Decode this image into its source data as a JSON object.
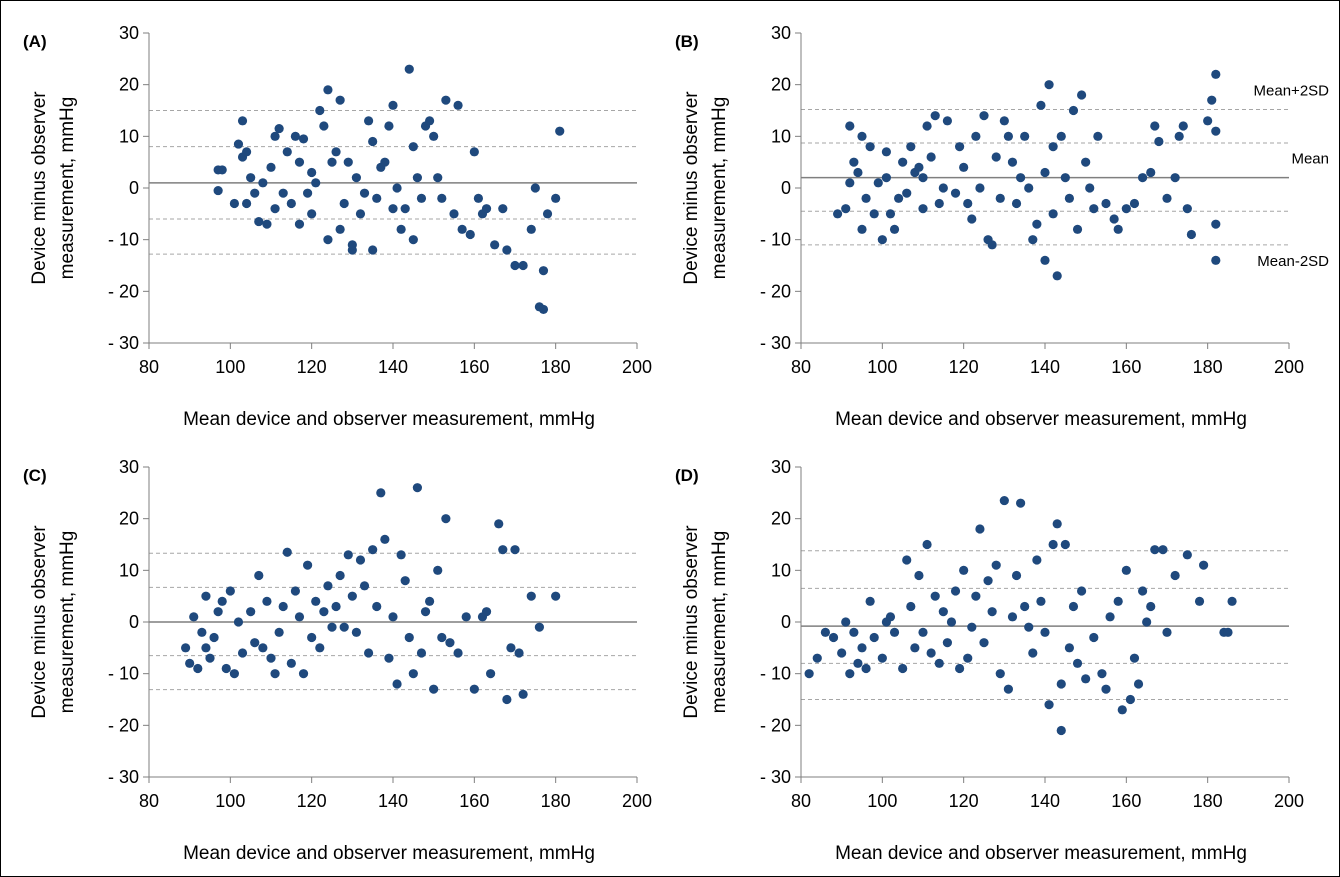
{
  "chart_data": [
    {
      "type": "scatter",
      "panel": "(A)",
      "ylabel": [
        "Device minus observer",
        "measurement, mmHg"
      ],
      "xlabel": "Mean device and observer measurement, mmHg",
      "color": "#1f497d",
      "xlim": [
        80,
        200
      ],
      "xticks": [
        80,
        100,
        120,
        140,
        160,
        180,
        200
      ],
      "ylim": [
        -30,
        30
      ],
      "yticks": [
        {
          "value": -30,
          "label": "- 30"
        },
        {
          "value": -20,
          "label": "- 20"
        },
        {
          "value": -10,
          "label": "- 10"
        },
        0,
        10,
        20,
        30
      ],
      "lines": [
        {
          "value": 15,
          "style": "dashed"
        },
        {
          "value": 8,
          "style": "dashed"
        },
        {
          "value": 1,
          "style": "solid"
        },
        {
          "value": -6,
          "style": "dashed"
        },
        {
          "value": -12.8,
          "style": "dashed"
        }
      ],
      "x": [
        97,
        97,
        98,
        101,
        102,
        103,
        103,
        104,
        104,
        105,
        106,
        107,
        108,
        109,
        110,
        111,
        111,
        112,
        113,
        114,
        115,
        116,
        117,
        117,
        118,
        119,
        120,
        120,
        121,
        122,
        123,
        124,
        124,
        125,
        126,
        127,
        127,
        128,
        129,
        130,
        130,
        131,
        132,
        133,
        134,
        135,
        135,
        136,
        137,
        138,
        139,
        140,
        140,
        141,
        142,
        143,
        144,
        145,
        145,
        146,
        147,
        148,
        149,
        150,
        151,
        152,
        153,
        155,
        156,
        157,
        159,
        160,
        161,
        162,
        163,
        165,
        167,
        168,
        170,
        172,
        174,
        175,
        176,
        177,
        177,
        178,
        180,
        181
      ],
      "values": [
        3.5,
        -0.5,
        3.5,
        -3,
        8.5,
        13,
        6,
        7,
        -3,
        2,
        -1,
        -6.5,
        1,
        -7,
        4,
        -4,
        10,
        11.5,
        -1,
        7,
        -3,
        10,
        -7,
        5,
        9.5,
        -1,
        3,
        -5,
        1,
        15,
        12,
        19,
        -10,
        5,
        7,
        17,
        -8,
        -3,
        5,
        -12,
        -11,
        2,
        -5,
        -1,
        13,
        9,
        -12,
        -2,
        4,
        5,
        12,
        16,
        -4,
        0,
        -8,
        -4,
        23,
        8,
        -10,
        2,
        -2,
        12,
        13,
        10,
        2,
        -2,
        17,
        -5,
        16,
        -8,
        -9,
        7,
        -2,
        -5,
        -4,
        -11,
        -4,
        -12,
        -15,
        -15,
        -8,
        0,
        -23,
        -23.5,
        -16,
        -5,
        -2,
        11
      ]
    },
    {
      "type": "scatter",
      "panel": "(B)",
      "ylabel": [
        "Device minus observer",
        "measurement, mmHg"
      ],
      "xlabel": "Mean device and observer measurement, mmHg",
      "color": "#1f497d",
      "xlim": [
        80,
        200
      ],
      "xticks": [
        80,
        100,
        120,
        140,
        160,
        180,
        200
      ],
      "ylim": [
        -30,
        30
      ],
      "yticks": [
        {
          "value": -30,
          "label": "- 30"
        },
        {
          "value": -20,
          "label": "- 20"
        },
        {
          "value": -10,
          "label": "- 10"
        },
        0,
        10,
        20,
        30
      ],
      "lines": [
        {
          "value": 15.2,
          "style": "dashed",
          "label": "Mean+2SD"
        },
        {
          "value": 8.7,
          "style": "dashed"
        },
        {
          "value": 2,
          "style": "solid",
          "label": "Mean"
        },
        {
          "value": -4.5,
          "style": "dashed"
        },
        {
          "value": -11,
          "style": "dashed",
          "label": "Mean-2SD"
        }
      ],
      "x": [
        89,
        91,
        92,
        92,
        93,
        94,
        95,
        95,
        96,
        97,
        98,
        99,
        100,
        101,
        101,
        102,
        103,
        104,
        105,
        106,
        107,
        108,
        109,
        110,
        110,
        111,
        112,
        113,
        114,
        115,
        116,
        118,
        119,
        120,
        121,
        122,
        123,
        124,
        125,
        126,
        127,
        128,
        129,
        130,
        131,
        132,
        133,
        134,
        135,
        136,
        137,
        138,
        139,
        140,
        140,
        141,
        142,
        142,
        143,
        144,
        145,
        146,
        147,
        148,
        149,
        150,
        151,
        152,
        153,
        155,
        157,
        158,
        160,
        162,
        164,
        166,
        167,
        168,
        170,
        172,
        173,
        174,
        175,
        176,
        180,
        181,
        182,
        182,
        182,
        182
      ],
      "values": [
        -5,
        -4,
        12,
        1,
        5,
        3,
        -8,
        10,
        -2,
        8,
        -5,
        1,
        -10,
        7,
        2,
        -5,
        -8,
        -2,
        5,
        -1,
        8,
        3,
        4,
        2,
        -4,
        12,
        6,
        14,
        -3,
        0,
        13,
        -1,
        8,
        4,
        -3,
        -6,
        10,
        0,
        14,
        -10,
        -11,
        6,
        -2,
        13,
        10,
        5,
        -3,
        2,
        10,
        0,
        -10,
        -7,
        16,
        -14,
        3,
        20,
        8,
        -5,
        -17,
        10,
        2,
        -2,
        15,
        -8,
        18,
        5,
        0,
        -4,
        10,
        -3,
        -6,
        -8,
        -4,
        -3,
        2,
        3,
        12,
        9,
        -2,
        2,
        10,
        12,
        -4,
        -9,
        13,
        17,
        11,
        22,
        -7,
        -14
      ]
    },
    {
      "type": "scatter",
      "panel": "(C)",
      "ylabel": [
        "Device minus observer",
        "measurement, mmHg"
      ],
      "xlabel": "Mean device and observer measurement, mmHg",
      "color": "#1f497d",
      "xlim": [
        80,
        200
      ],
      "xticks": [
        80,
        100,
        120,
        140,
        160,
        180,
        200
      ],
      "ylim": [
        -30,
        30
      ],
      "yticks": [
        {
          "value": -30,
          "label": "- 30"
        },
        {
          "value": -20,
          "label": "- 20"
        },
        {
          "value": -10,
          "label": "- 10"
        },
        0,
        10,
        20,
        30
      ],
      "lines": [
        {
          "value": 13.3,
          "style": "dashed"
        },
        {
          "value": 6.7,
          "style": "dashed"
        },
        {
          "value": 0,
          "style": "solid"
        },
        {
          "value": -6.5,
          "style": "dashed"
        },
        {
          "value": -13.1,
          "style": "dashed"
        }
      ],
      "x": [
        89,
        90,
        91,
        92,
        93,
        94,
        94,
        95,
        96,
        97,
        98,
        99,
        100,
        101,
        102,
        103,
        105,
        106,
        107,
        108,
        109,
        110,
        111,
        112,
        113,
        114,
        115,
        116,
        117,
        118,
        119,
        120,
        121,
        122,
        123,
        124,
        125,
        126,
        127,
        128,
        129,
        130,
        131,
        132,
        133,
        134,
        135,
        136,
        137,
        138,
        139,
        140,
        141,
        142,
        143,
        144,
        145,
        146,
        147,
        148,
        149,
        150,
        151,
        152,
        153,
        154,
        156,
        158,
        160,
        162,
        163,
        164,
        166,
        167,
        168,
        169,
        170,
        171,
        172,
        174,
        176,
        180
      ],
      "values": [
        -5,
        -8,
        1,
        -9,
        -2,
        -5,
        5,
        -7,
        -3,
        2,
        4,
        -9,
        6,
        -10,
        0,
        -6,
        2,
        -4,
        9,
        -5,
        4,
        -7,
        -10,
        -2,
        3,
        13.5,
        -8,
        6,
        1,
        -10,
        11,
        -3,
        4,
        -5,
        2,
        7,
        -1,
        3,
        9,
        -1,
        13,
        5,
        -2,
        12,
        7,
        -6,
        14,
        3,
        25,
        16,
        -7,
        1,
        -12,
        13,
        8,
        -3,
        -10,
        26,
        -6,
        2,
        4,
        -13,
        10,
        -3,
        20,
        -4,
        -6,
        1,
        -13,
        1,
        2,
        -10,
        19,
        14,
        -15,
        -5,
        14,
        -6,
        -14,
        5,
        -1,
        5
      ]
    },
    {
      "type": "scatter",
      "panel": "(D)",
      "ylabel": [
        "Device minus observer",
        "measurement, mmHg"
      ],
      "xlabel": "Mean device and observer measurement, mmHg",
      "color": "#1f497d",
      "xlim": [
        80,
        200
      ],
      "xticks": [
        80,
        100,
        120,
        140,
        160,
        180,
        200
      ],
      "ylim": [
        -30,
        30
      ],
      "yticks": [
        {
          "value": -30,
          "label": "- 30"
        },
        {
          "value": -20,
          "label": "- 20"
        },
        {
          "value": -10,
          "label": "- 10"
        },
        0,
        10,
        20,
        30
      ],
      "lines": [
        {
          "value": 13.8,
          "style": "dashed"
        },
        {
          "value": 6.5,
          "style": "dashed"
        },
        {
          "value": -0.8,
          "style": "solid"
        },
        {
          "value": -8,
          "style": "dashed"
        },
        {
          "value": -15,
          "style": "dashed"
        }
      ],
      "x": [
        82,
        84,
        86,
        88,
        90,
        91,
        92,
        93,
        94,
        95,
        96,
        97,
        98,
        100,
        101,
        102,
        103,
        105,
        106,
        107,
        108,
        109,
        110,
        111,
        112,
        113,
        114,
        115,
        116,
        117,
        118,
        119,
        120,
        121,
        122,
        123,
        124,
        125,
        126,
        127,
        128,
        129,
        130,
        131,
        132,
        133,
        134,
        135,
        136,
        137,
        138,
        139,
        140,
        141,
        142,
        143,
        144,
        144,
        145,
        146,
        147,
        148,
        149,
        150,
        152,
        154,
        155,
        156,
        158,
        159,
        160,
        161,
        162,
        163,
        164,
        165,
        166,
        167,
        169,
        170,
        172,
        175,
        178,
        179,
        184,
        185,
        186
      ],
      "values": [
        -10,
        -7,
        -2,
        -3,
        -6,
        0,
        -10,
        -2,
        -8,
        -5,
        -9,
        4,
        -3,
        -7,
        0,
        1,
        -2,
        -9,
        12,
        3,
        -5,
        9,
        -2,
        15,
        -6,
        5,
        -8,
        2,
        -4,
        0,
        6,
        -9,
        10,
        -7,
        -1,
        5,
        18,
        -4,
        8,
        2,
        11,
        -10,
        23.5,
        -13,
        1,
        9,
        23,
        3,
        -1,
        -6,
        12,
        4,
        -2,
        -16,
        15,
        19,
        -12,
        -21,
        15,
        -5,
        3,
        -8,
        6,
        -11,
        -3,
        -10,
        -13,
        1,
        4,
        -17,
        10,
        -15,
        -7,
        -12,
        6,
        0,
        3,
        14,
        14,
        -2,
        9,
        13,
        4,
        11,
        -2,
        -2,
        4
      ]
    }
  ]
}
